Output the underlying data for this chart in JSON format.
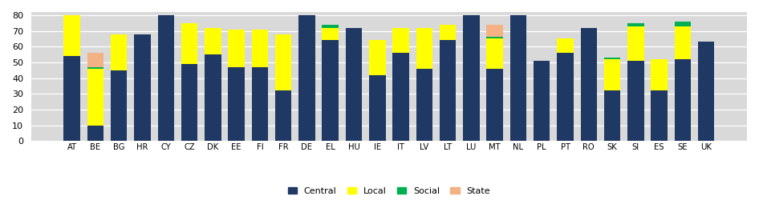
{
  "categories": [
    "AT",
    "BE",
    "BG",
    "HR",
    "CY",
    "CZ",
    "DK",
    "EE",
    "FI",
    "FR",
    "DE",
    "EL",
    "HU",
    "IE",
    "IT",
    "LV",
    "LT",
    "LU",
    "MT",
    "NL",
    "PL",
    "PT",
    "RO",
    "SK",
    "SI",
    "ES",
    "SE",
    "UK"
  ],
  "central": [
    54,
    10,
    45,
    68,
    80,
    49,
    55,
    47,
    47,
    32,
    80,
    64,
    72,
    42,
    56,
    46,
    64,
    80,
    46,
    80,
    51,
    56,
    72,
    32,
    51,
    32,
    52,
    63
  ],
  "local": [
    26,
    36,
    23,
    0,
    0,
    26,
    17,
    24,
    24,
    36,
    0,
    8,
    0,
    22,
    16,
    26,
    10,
    0,
    19,
    0,
    0,
    9,
    0,
    20,
    22,
    20,
    21,
    0
  ],
  "social": [
    0,
    1,
    0,
    0,
    0,
    0,
    0,
    0,
    0,
    0,
    0,
    2,
    0,
    0,
    0,
    0,
    0,
    0,
    1,
    0,
    0,
    0,
    0,
    1,
    2,
    0,
    3,
    0
  ],
  "state": [
    0,
    9,
    0,
    0,
    0,
    0,
    0,
    0,
    0,
    0,
    0,
    0,
    0,
    0,
    0,
    0,
    0,
    0,
    8,
    0,
    0,
    0,
    0,
    0,
    0,
    0,
    0,
    0
  ],
  "colors": {
    "central": "#1F3864",
    "local": "#FFFF00",
    "social": "#00B050",
    "state": "#F4B183"
  },
  "ylim": [
    0,
    82
  ],
  "yticks": [
    0,
    10,
    20,
    30,
    40,
    50,
    60,
    70,
    80
  ],
  "bg_color": "#D9D9D9",
  "grid_color": "#FFFFFF",
  "figsize": [
    9.46,
    2.75
  ],
  "dpi": 100
}
